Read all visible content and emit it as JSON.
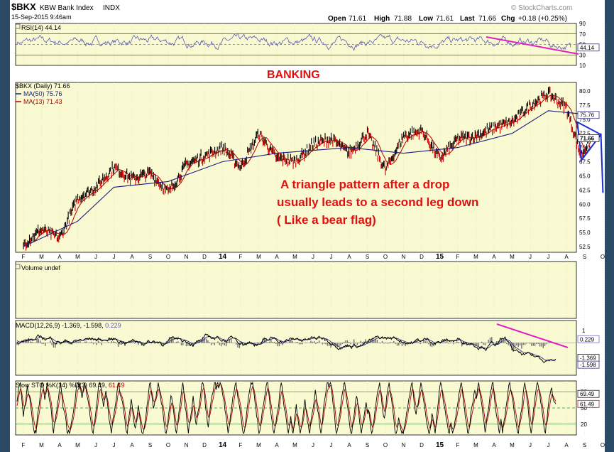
{
  "header": {
    "symbol": "$BKX",
    "name": "KBW Bank Index",
    "exchange": "INDX",
    "timestamp": "15-Sep-2015 9:46am",
    "brand": "© StockCharts.com",
    "quote": {
      "open_label": "Open",
      "open": "71.61",
      "high_label": "High",
      "high": "71.88",
      "low_label": "Low",
      "low": "71.61",
      "last_label": "Last",
      "last": "71.66",
      "chg_label": "Chg",
      "chg": "+0.18 (+0.25%)"
    }
  },
  "colors": {
    "panel_bg": "#fafad2",
    "page_bg": "#ffffff",
    "frame_bg": "#2b4a66",
    "price": "#000000",
    "price_down": "#cc0000",
    "ma50": "#1a1a80",
    "ma13": "#b00000",
    "rsi": "#5a5ab8",
    "annotation": "#e01010",
    "trend_line": "#e020c0",
    "triangle": "#1a2ed0",
    "macd_hist": "#6e6e6e",
    "sto_k": "#000000",
    "sto_d": "#b00000",
    "grid": "#d8d8b0"
  },
  "annotations": {
    "banking": "BANKING",
    "note_line1": "A triangle pattern after  a drop",
    "note_line2": "usually leads to a second leg down",
    "note_line3": "( Like a bear flag)"
  },
  "chart_data": [
    {
      "type": "line",
      "panel": "rsi",
      "label": "RSI(14) 44.14",
      "series": [
        {
          "name": "RSI(14)",
          "last": 44.14
        }
      ],
      "y_ticks": [
        90,
        70,
        50,
        30,
        10
      ],
      "reference_lines": [
        70,
        30
      ],
      "ylim": [
        10,
        90
      ],
      "last_value_tag": "44.14"
    },
    {
      "type": "line",
      "panel": "price",
      "legend": [
        {
          "label": "$BKX (Daily) 71.66"
        },
        {
          "label": "MA(50) 75.76"
        },
        {
          "label": "MA(13) 71.43"
        }
      ],
      "series": [
        {
          "name": "$BKX (Daily)",
          "last": 71.66
        },
        {
          "name": "MA(50)",
          "last": 75.76
        },
        {
          "name": "MA(13)",
          "last": 71.43
        }
      ],
      "y_ticks": [
        80.0,
        77.5,
        75.0,
        72.5,
        70.0,
        67.5,
        65.0,
        62.5,
        60.0,
        57.5,
        55.0,
        52.5
      ],
      "ylim": [
        51.5,
        81.5
      ],
      "x_ticks": [
        "F",
        "M",
        "A",
        "M",
        "J",
        "J",
        "A",
        "S",
        "O",
        "N",
        "D",
        "14",
        "F",
        "M",
        "A",
        "M",
        "J",
        "J",
        "A",
        "S",
        "O",
        "N",
        "D",
        "15",
        "F",
        "M",
        "A",
        "M",
        "J",
        "J",
        "A",
        "S",
        "O"
      ],
      "price_keypoints": [
        {
          "x": "Feb 2013",
          "y": 53.0
        },
        {
          "x": "Mar 2013",
          "y": 55.5
        },
        {
          "x": "Apr 2013",
          "y": 54.0
        },
        {
          "x": "May 2013",
          "y": 61.0
        },
        {
          "x": "Jun 2013",
          "y": 63.0
        },
        {
          "x": "Jul 2013",
          "y": 66.5
        },
        {
          "x": "Aug 2013",
          "y": 64.5
        },
        {
          "x": "Sep 2013",
          "y": 65.5
        },
        {
          "x": "Oct 2013",
          "y": 62.0
        },
        {
          "x": "Nov 2013",
          "y": 67.0
        },
        {
          "x": "Dec 2013",
          "y": 68.5
        },
        {
          "x": "Jan 2014",
          "y": 70.0
        },
        {
          "x": "Feb 2014",
          "y": 66.5
        },
        {
          "x": "Mar 2014",
          "y": 72.5
        },
        {
          "x": "Apr 2014",
          "y": 68.0
        },
        {
          "x": "May 2014",
          "y": 67.5
        },
        {
          "x": "Jun 2014",
          "y": 70.5
        },
        {
          "x": "Jul 2014",
          "y": 71.5
        },
        {
          "x": "Aug 2014",
          "y": 69.0
        },
        {
          "x": "Sep 2014",
          "y": 72.5
        },
        {
          "x": "Oct 2014",
          "y": 66.0
        },
        {
          "x": "Nov 2014",
          "y": 72.0
        },
        {
          "x": "Dec 2014",
          "y": 73.0
        },
        {
          "x": "Jan 2015",
          "y": 68.0
        },
        {
          "x": "Feb 2015",
          "y": 71.5
        },
        {
          "x": "Mar 2015",
          "y": 72.0
        },
        {
          "x": "Apr 2015",
          "y": 73.5
        },
        {
          "x": "May 2015",
          "y": 74.5
        },
        {
          "x": "Jun 2015",
          "y": 77.5
        },
        {
          "x": "Jul 2015",
          "y": 79.5
        },
        {
          "x": "Aug 2015",
          "y": 77.0
        },
        {
          "x": "Aug 2015 (late)",
          "y": 68.5
        },
        {
          "x": "Sep 2015",
          "y": 71.66
        }
      ],
      "ma50_keypoints": [
        {
          "x": "Feb 2013",
          "y": 52.5
        },
        {
          "x": "May 2013",
          "y": 57.0
        },
        {
          "x": "Jul 2013",
          "y": 63.0
        },
        {
          "x": "Oct 2013",
          "y": 64.0
        },
        {
          "x": "Jan 2014",
          "y": 67.5
        },
        {
          "x": "Apr 2014",
          "y": 69.0
        },
        {
          "x": "Aug 2014",
          "y": 70.0
        },
        {
          "x": "Nov 2014",
          "y": 69.0
        },
        {
          "x": "Feb 2015",
          "y": 70.0
        },
        {
          "x": "May 2015",
          "y": 72.5
        },
        {
          "x": "Jul 2015",
          "y": 76.5
        },
        {
          "x": "Sep 2015",
          "y": 75.76
        }
      ],
      "projection": {
        "from": 72.5,
        "to": 62.0
      }
    },
    {
      "type": "bar",
      "panel": "volume",
      "label": "Volume undef"
    },
    {
      "type": "line",
      "panel": "macd",
      "label_main": "MACD(12,26,9)",
      "label_values": "-1.369, -1.598,",
      "label_hist": "0.229",
      "series": [
        {
          "name": "MACD(12,26,9)",
          "last": -1.369
        },
        {
          "name": "Signal",
          "last": -1.598
        },
        {
          "name": "Histogram",
          "last": 0.229
        }
      ],
      "y_ticks": [
        "1",
        "-1"
      ],
      "tags": [
        "0.229",
        "-1.369",
        "-1.598"
      ]
    },
    {
      "type": "line",
      "panel": "slow_sto",
      "label_main": "Slow STO %K(14) %D(3)",
      "label_k": "69.49,",
      "label_d": "61.49",
      "series": [
        {
          "name": "%K(14)",
          "last": 69.49
        },
        {
          "name": "%D(3)",
          "last": 61.49
        }
      ],
      "y_ticks": [
        80,
        50,
        20
      ],
      "reference_lines": [
        80,
        50,
        20
      ],
      "ylim": [
        0,
        100
      ],
      "tags": [
        "69.49",
        "61.49"
      ]
    }
  ]
}
